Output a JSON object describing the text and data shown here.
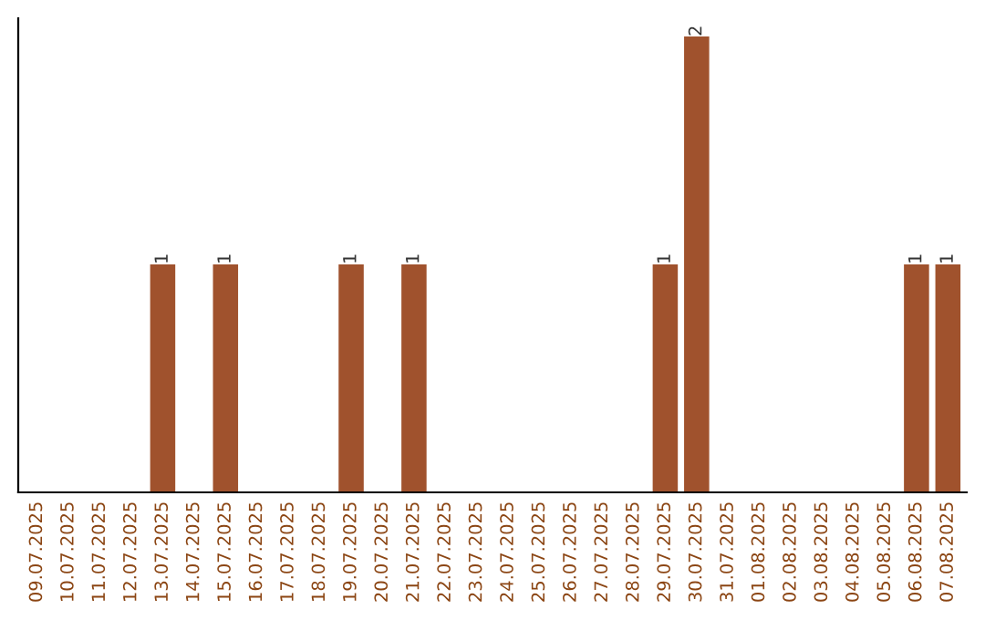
{
  "chart_data": {
    "type": "bar",
    "categories": [
      "09.07.2025",
      "10.07.2025",
      "11.07.2025",
      "12.07.2025",
      "13.07.2025",
      "14.07.2025",
      "15.07.2025",
      "16.07.2025",
      "17.07.2025",
      "18.07.2025",
      "19.07.2025",
      "20.07.2025",
      "21.07.2025",
      "22.07.2025",
      "23.07.2025",
      "24.07.2025",
      "25.07.2025",
      "26.07.2025",
      "27.07.2025",
      "28.07.2025",
      "29.07.2025",
      "30.07.2025",
      "31.07.2025",
      "01.08.2025",
      "02.08.2025",
      "03.08.2025",
      "04.08.2025",
      "05.08.2025",
      "06.08.2025",
      "07.08.2025"
    ],
    "values": [
      0,
      0,
      0,
      0,
      1,
      0,
      1,
      0,
      0,
      0,
      1,
      0,
      1,
      0,
      0,
      0,
      0,
      0,
      0,
      0,
      1,
      2,
      0,
      0,
      0,
      0,
      0,
      0,
      1,
      1
    ],
    "value_labels": [
      null,
      null,
      null,
      null,
      "1",
      null,
      "1",
      null,
      null,
      null,
      "1",
      null,
      "1",
      null,
      null,
      null,
      null,
      null,
      null,
      null,
      "1",
      "2",
      null,
      null,
      null,
      null,
      null,
      null,
      "1",
      "1"
    ],
    "color": "#a0522d",
    "ylim": [
      0,
      2.08
    ],
    "tick_labels": "x",
    "grid": false,
    "legend": false
  }
}
